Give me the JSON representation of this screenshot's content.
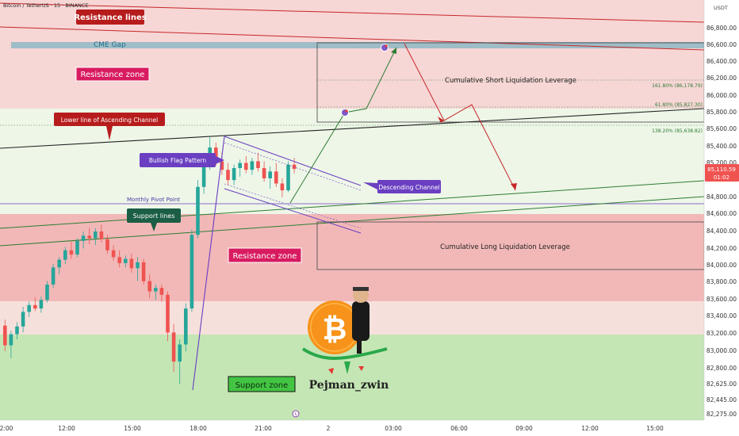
{
  "header": {
    "symbol_line": "Bitcoin / TetherUS · 15 · BINANCE",
    "currency": "USDT"
  },
  "colors": {
    "resistance_zone": "#f2b8b8",
    "resistance_zone_light": "#f7d6d6",
    "support_zone": "#c4e6b4",
    "neutral_zone": "#eef6e8",
    "cme_gap": "#8fb8c4",
    "bull_candle": "#26a69a",
    "bear_candle": "#ef5350",
    "red_label": "#b71c1c",
    "green_label": "#2e7d32",
    "purple": "#6a3fc1",
    "price_tag": "#ef5350",
    "bitcoin_orange": "#f7931a"
  },
  "labels": {
    "resistance_lines": "Resistance lines",
    "cme_gap": "CME Gap",
    "resistance_zone_top": "Resistance zone",
    "resistance_zone_mid": "Resistance zone",
    "lower_line_channel": "Lower line of Ascending Channel",
    "bullish_flag": "Bullish Flag Pattern",
    "descending_channel": "Descending Channel",
    "monthly_pivot": "Monthly Pivot Point",
    "support_lines": "Support lines",
    "support_zone": "Support zone",
    "short_liq": "Cumulative Short Liquidation Leverage",
    "long_liq": "Cumulative Long  Liquidation Leverage",
    "fib_1618": "161.80% (86,178.79)",
    "fib_618": "61.80% (85,827.30)",
    "fib_1382": "138.20% (85,638.82)",
    "author": "Pejman_zwin",
    "current_price": "85,110.59",
    "countdown": "01:02"
  },
  "chart_data": {
    "type": "candlestick",
    "symbol": "Bitcoin / TetherUS",
    "timeframe": "15",
    "exchange": "BINANCE",
    "y_ticks": [
      "86,800.00",
      "86,600.00",
      "86,400.00",
      "86,200.00",
      "86,000.00",
      "85,800.00",
      "85,600.00",
      "85,400.00",
      "85,200.00",
      "84,800.00",
      "84,600.00",
      "84,400.00",
      "84,200.00",
      "84,000.00",
      "83,800.00",
      "83,600.00",
      "83,400.00",
      "83,200.00",
      "83,000.00",
      "82,800.00",
      "82,625.00",
      "82,445.00",
      "82,275.00"
    ],
    "x_ticks": [
      "2:00",
      "12:00",
      "15:00",
      "18:00",
      "21:00",
      "2",
      "03:00",
      "06:00",
      "09:00",
      "12:00",
      "15:00"
    ],
    "current_price": 85110.59,
    "candles": [
      {
        "o": 83280,
        "h": 83350,
        "l": 82980,
        "c": 83050
      },
      {
        "o": 83050,
        "h": 83220,
        "l": 82900,
        "c": 83180
      },
      {
        "o": 83180,
        "h": 83320,
        "l": 83120,
        "c": 83270
      },
      {
        "o": 83270,
        "h": 83500,
        "l": 83200,
        "c": 83440
      },
      {
        "o": 83440,
        "h": 83560,
        "l": 83380,
        "c": 83520
      },
      {
        "o": 83520,
        "h": 83610,
        "l": 83450,
        "c": 83480
      },
      {
        "o": 83480,
        "h": 83620,
        "l": 83430,
        "c": 83580
      },
      {
        "o": 83580,
        "h": 83800,
        "l": 83550,
        "c": 83760
      },
      {
        "o": 83760,
        "h": 84000,
        "l": 83720,
        "c": 83960
      },
      {
        "o": 83960,
        "h": 84080,
        "l": 83880,
        "c": 84050
      },
      {
        "o": 84050,
        "h": 84200,
        "l": 84000,
        "c": 84160
      },
      {
        "o": 84160,
        "h": 84260,
        "l": 84060,
        "c": 84110
      },
      {
        "o": 84110,
        "h": 84300,
        "l": 84080,
        "c": 84270
      },
      {
        "o": 84270,
        "h": 84380,
        "l": 84180,
        "c": 84330
      },
      {
        "o": 84330,
        "h": 84420,
        "l": 84230,
        "c": 84300
      },
      {
        "o": 84300,
        "h": 84420,
        "l": 84220,
        "c": 84380
      },
      {
        "o": 84380,
        "h": 84460,
        "l": 84250,
        "c": 84290
      },
      {
        "o": 84290,
        "h": 84340,
        "l": 84120,
        "c": 84160
      },
      {
        "o": 84160,
        "h": 84220,
        "l": 84040,
        "c": 84080
      },
      {
        "o": 84080,
        "h": 84160,
        "l": 83960,
        "c": 84010
      },
      {
        "o": 84010,
        "h": 84100,
        "l": 83960,
        "c": 84060
      },
      {
        "o": 84060,
        "h": 84120,
        "l": 83900,
        "c": 83950
      },
      {
        "o": 83950,
        "h": 84080,
        "l": 83800,
        "c": 84020
      },
      {
        "o": 84020,
        "h": 84060,
        "l": 83760,
        "c": 83800
      },
      {
        "o": 83800,
        "h": 83880,
        "l": 83600,
        "c": 83680
      },
      {
        "o": 83680,
        "h": 83760,
        "l": 83580,
        "c": 83720
      },
      {
        "o": 83720,
        "h": 83760,
        "l": 83560,
        "c": 83640
      },
      {
        "o": 83640,
        "h": 83680,
        "l": 83100,
        "c": 83200
      },
      {
        "o": 83200,
        "h": 83300,
        "l": 82740,
        "c": 82860
      },
      {
        "o": 82860,
        "h": 83120,
        "l": 82600,
        "c": 83060
      },
      {
        "o": 83060,
        "h": 83540,
        "l": 82980,
        "c": 83480
      },
      {
        "o": 83480,
        "h": 84400,
        "l": 83440,
        "c": 84340
      },
      {
        "o": 84340,
        "h": 84980,
        "l": 84300,
        "c": 84900
      },
      {
        "o": 84900,
        "h": 85300,
        "l": 84820,
        "c": 85240
      },
      {
        "o": 85240,
        "h": 85480,
        "l": 85100,
        "c": 85360
      },
      {
        "o": 85360,
        "h": 85420,
        "l": 85150,
        "c": 85200
      },
      {
        "o": 85200,
        "h": 85300,
        "l": 85040,
        "c": 85100
      },
      {
        "o": 85100,
        "h": 85180,
        "l": 84920,
        "c": 84980
      },
      {
        "o": 84980,
        "h": 85160,
        "l": 84920,
        "c": 85120
      },
      {
        "o": 85120,
        "h": 85220,
        "l": 85020,
        "c": 85180
      },
      {
        "o": 85180,
        "h": 85260,
        "l": 85060,
        "c": 85100
      },
      {
        "o": 85100,
        "h": 85240,
        "l": 85040,
        "c": 85200
      },
      {
        "o": 85200,
        "h": 85300,
        "l": 85080,
        "c": 85120
      },
      {
        "o": 85120,
        "h": 85200,
        "l": 84960,
        "c": 85000
      },
      {
        "o": 85000,
        "h": 85140,
        "l": 84880,
        "c": 85080
      },
      {
        "o": 85080,
        "h": 85180,
        "l": 84900,
        "c": 84940
      },
      {
        "o": 84940,
        "h": 85000,
        "l": 84780,
        "c": 84860
      },
      {
        "o": 84860,
        "h": 85200,
        "l": 84840,
        "c": 85160
      },
      {
        "o": 85160,
        "h": 85240,
        "l": 85060,
        "c": 85110
      }
    ]
  }
}
